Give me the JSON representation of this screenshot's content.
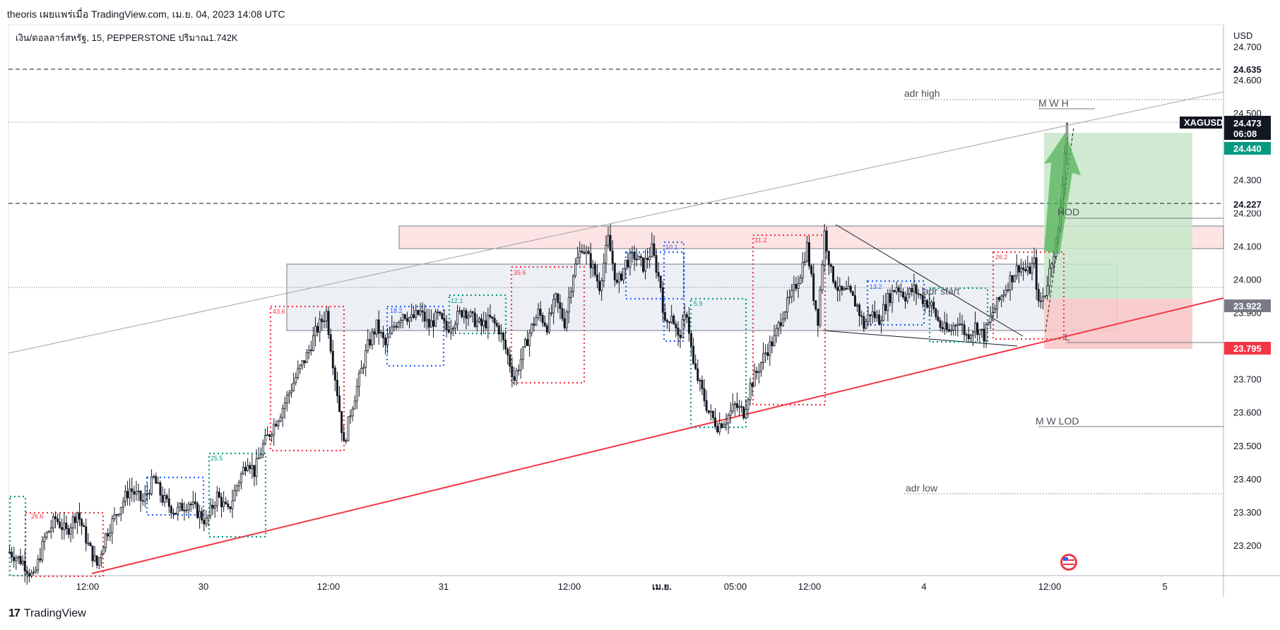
{
  "header": {
    "publisher_line": "theoris เผยแพร่เมื่อ TradingView.com, เม.ย. 04, 2023 14:08 UTC",
    "symbol_line": "เงิน/ดอลลาร์สหรัฐ, 15, PEPPERSTONE  ปริมาณ1.742K"
  },
  "footer": {
    "brand": "TradingView",
    "logo_glyph": "17"
  },
  "colors": {
    "up": "#131722",
    "down": "#131722",
    "trendline_red": "#f23645",
    "long_green": "#4caf50",
    "long_fill": "#c8e6c9",
    "short_fill": "#f8c8c8",
    "zone_fill_grey": "#eceff4",
    "zone_fill_pink": "#fde4e4",
    "blue": "#2962ff",
    "red": "#f23645",
    "green": "#089981"
  },
  "chart_data": {
    "type": "candlestick",
    "symbol": "XAGUSD",
    "currency": "USD",
    "ylim": [
      23.12,
      24.72
    ],
    "y_ticks": [
      "24.700",
      "24.600",
      "24.500",
      "24.400",
      "24.300",
      "24.200",
      "24.100",
      "24.000",
      "23.900",
      "23.800",
      "23.700",
      "23.600",
      "23.500",
      "23.400",
      "23.300",
      "23.200"
    ],
    "x_labels": [
      "12:00",
      "30",
      "12:00",
      "31",
      "12:00",
      "เม.ย.",
      "05:00",
      "12:00",
      "4",
      "12:00",
      "5"
    ],
    "close_path": [
      [
        0,
        23.18
      ],
      [
        6,
        23.15
      ],
      [
        11,
        23.1
      ],
      [
        16,
        23.22
      ],
      [
        21,
        23.28
      ],
      [
        26,
        23.24
      ],
      [
        31,
        23.3
      ],
      [
        36,
        23.2
      ],
      [
        40,
        23.14
      ],
      [
        44,
        23.23
      ],
      [
        50,
        23.31
      ],
      [
        55,
        23.37
      ],
      [
        61,
        23.33
      ],
      [
        66,
        23.4
      ],
      [
        70,
        23.34
      ],
      [
        76,
        23.3
      ],
      [
        82,
        23.33
      ],
      [
        86,
        23.3
      ],
      [
        90,
        23.27
      ],
      [
        95,
        23.35
      ],
      [
        100,
        23.3
      ],
      [
        104,
        23.38
      ],
      [
        109,
        23.46
      ],
      [
        112,
        23.42
      ],
      [
        116,
        23.5
      ],
      [
        120,
        23.55
      ],
      [
        124,
        23.6
      ],
      [
        128,
        23.66
      ],
      [
        132,
        23.72
      ],
      [
        136,
        23.77
      ],
      [
        140,
        23.84
      ],
      [
        145,
        23.9
      ],
      [
        147,
        23.8
      ],
      [
        150,
        23.66
      ],
      [
        153,
        23.5
      ],
      [
        156,
        23.6
      ],
      [
        160,
        23.7
      ],
      [
        164,
        23.8
      ],
      [
        168,
        23.86
      ],
      [
        172,
        23.8
      ],
      [
        176,
        23.86
      ],
      [
        180,
        23.9
      ],
      [
        184,
        23.88
      ],
      [
        188,
        23.9
      ],
      [
        192,
        23.86
      ],
      [
        196,
        23.89
      ],
      [
        200,
        23.85
      ],
      [
        204,
        23.88
      ],
      [
        208,
        23.91
      ],
      [
        212,
        23.88
      ],
      [
        216,
        23.86
      ],
      [
        220,
        23.88
      ],
      [
        224,
        23.85
      ],
      [
        228,
        23.77
      ],
      [
        231,
        23.7
      ],
      [
        234,
        23.76
      ],
      [
        238,
        23.84
      ],
      [
        242,
        23.9
      ],
      [
        246,
        23.86
      ],
      [
        250,
        23.94
      ],
      [
        254,
        23.87
      ],
      [
        258,
        24.02
      ],
      [
        262,
        24.1
      ],
      [
        266,
        24.05
      ],
      [
        270,
        23.98
      ],
      [
        274,
        24.12
      ],
      [
        278,
        23.98
      ],
      [
        282,
        24.05
      ],
      [
        286,
        24.07
      ],
      [
        290,
        24.04
      ],
      [
        294,
        24.09
      ],
      [
        298,
        23.98
      ],
      [
        300,
        23.86
      ],
      [
        303,
        23.9
      ],
      [
        306,
        23.82
      ],
      [
        310,
        23.9
      ],
      [
        313,
        23.74
      ],
      [
        316,
        23.68
      ],
      [
        320,
        23.6
      ],
      [
        324,
        23.56
      ],
      [
        328,
        23.58
      ],
      [
        332,
        23.62
      ],
      [
        336,
        23.6
      ],
      [
        339,
        23.68
      ],
      [
        342,
        23.72
      ],
      [
        346,
        23.78
      ],
      [
        350,
        23.82
      ],
      [
        354,
        23.9
      ],
      [
        358,
        23.95
      ],
      [
        362,
        24.02
      ],
      [
        365,
        24.1
      ],
      [
        368,
        23.95
      ],
      [
        370,
        23.88
      ],
      [
        373,
        24.14
      ],
      [
        376,
        24.02
      ],
      [
        380,
        23.96
      ],
      [
        384,
        23.96
      ],
      [
        388,
        23.92
      ],
      [
        391,
        23.86
      ],
      [
        394,
        23.9
      ],
      [
        398,
        23.88
      ],
      [
        402,
        23.94
      ],
      [
        406,
        23.98
      ],
      [
        410,
        23.95
      ],
      [
        414,
        23.97
      ],
      [
        418,
        23.94
      ],
      [
        422,
        23.92
      ],
      [
        426,
        23.86
      ],
      [
        430,
        23.84
      ],
      [
        434,
        23.88
      ],
      [
        438,
        23.83
      ],
      [
        442,
        23.86
      ],
      [
        446,
        23.83
      ],
      [
        450,
        23.9
      ],
      [
        454,
        23.95
      ],
      [
        458,
        24.0
      ],
      [
        462,
        24.04
      ],
      [
        466,
        24.02
      ],
      [
        469,
        24.05
      ],
      [
        471,
        23.92
      ],
      [
        474,
        23.96
      ],
      [
        477,
        24.06
      ],
      [
        480,
        24.14
      ],
      [
        482,
        24.3
      ],
      [
        484,
        24.47
      ]
    ],
    "last_price": "24.473",
    "countdown": "06:08",
    "price_labels": [
      {
        "value": "24.635",
        "kind": "line"
      },
      {
        "value": "24.440",
        "kind": "target"
      },
      {
        "value": "24.227",
        "kind": "line"
      },
      {
        "value": "23.922",
        "kind": "entry"
      },
      {
        "value": "23.795",
        "kind": "stop"
      }
    ],
    "annotations": {
      "adr_high": "adr high",
      "adr_low": "adr low",
      "mw_h": "M W  H",
      "hod": "HOD",
      "mw_lod": "M W LOD",
      "l": "L",
      "adr_start": "adr start"
    },
    "zone_labels": [
      "26.6",
      "25.5",
      "43.6",
      "18.2",
      "12.1",
      "35.6",
      "14.5",
      "10.1",
      "5.9",
      "31.2",
      "13.2",
      "26.2"
    ]
  }
}
